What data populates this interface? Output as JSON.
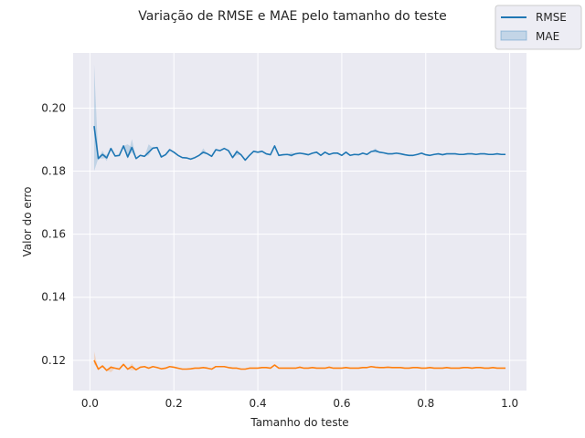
{
  "chart_data": {
    "type": "line",
    "title": "Variação de RMSE e MAE pelo tamanho do teste",
    "xlabel": "Tamanho do teste",
    "ylabel": "Valor do erro",
    "xlim": [
      -0.04,
      1.04
    ],
    "ylim": [
      0.1104,
      0.2175
    ],
    "x_ticks": [
      0.0,
      0.2,
      0.4,
      0.6,
      0.8,
      1.0
    ],
    "x_tick_labels": [
      "0.0",
      "0.2",
      "0.4",
      "0.6",
      "0.8",
      "1.0"
    ],
    "y_ticks": [
      0.12,
      0.14,
      0.16,
      0.18,
      0.2
    ],
    "y_tick_labels": [
      "0.12",
      "0.14",
      "0.16",
      "0.18",
      "0.20"
    ],
    "grid": true,
    "legend_position": "top-right",
    "legend": [
      {
        "label": "RMSE",
        "kind": "line"
      },
      {
        "label": "MAE",
        "kind": "band"
      }
    ],
    "series": [
      {
        "name": "RMSE",
        "color": "#1f77b4",
        "x": [
          0.01,
          0.02,
          0.03,
          0.04,
          0.05,
          0.06,
          0.07,
          0.08,
          0.09,
          0.1,
          0.11,
          0.12,
          0.13,
          0.14,
          0.15,
          0.16,
          0.17,
          0.18,
          0.19,
          0.2,
          0.21,
          0.22,
          0.23,
          0.24,
          0.25,
          0.26,
          0.27,
          0.28,
          0.29,
          0.3,
          0.31,
          0.32,
          0.33,
          0.34,
          0.35,
          0.36,
          0.37,
          0.38,
          0.39,
          0.4,
          0.41,
          0.42,
          0.43,
          0.44,
          0.45,
          0.46,
          0.47,
          0.48,
          0.49,
          0.5,
          0.51,
          0.52,
          0.53,
          0.54,
          0.55,
          0.56,
          0.57,
          0.58,
          0.59,
          0.6,
          0.61,
          0.62,
          0.63,
          0.64,
          0.65,
          0.66,
          0.67,
          0.68,
          0.69,
          0.7,
          0.71,
          0.72,
          0.73,
          0.74,
          0.75,
          0.76,
          0.77,
          0.78,
          0.79,
          0.8,
          0.81,
          0.82,
          0.83,
          0.84,
          0.85,
          0.86,
          0.87,
          0.88,
          0.89,
          0.9,
          0.91,
          0.92,
          0.93,
          0.94,
          0.95,
          0.96,
          0.97,
          0.98,
          0.99
        ],
        "y": [
          0.1943,
          0.184,
          0.1853,
          0.1842,
          0.1872,
          0.1848,
          0.185,
          0.188,
          0.1845,
          0.1875,
          0.184,
          0.185,
          0.1847,
          0.186,
          0.1873,
          0.1875,
          0.1845,
          0.1852,
          0.1868,
          0.186,
          0.185,
          0.1843,
          0.1842,
          0.1838,
          0.1843,
          0.185,
          0.186,
          0.1855,
          0.1847,
          0.1868,
          0.1865,
          0.1872,
          0.1865,
          0.1843,
          0.1862,
          0.1852,
          0.1835,
          0.185,
          0.1863,
          0.186,
          0.1863,
          0.1855,
          0.1852,
          0.188,
          0.185,
          0.1852,
          0.1853,
          0.185,
          0.1855,
          0.1857,
          0.1855,
          0.1852,
          0.1857,
          0.186,
          0.185,
          0.186,
          0.1853,
          0.1857,
          0.1857,
          0.185,
          0.186,
          0.185,
          0.1853,
          0.1852,
          0.1857,
          0.1853,
          0.1862,
          0.1865,
          0.186,
          0.1858,
          0.1855,
          0.1855,
          0.1857,
          0.1855,
          0.1852,
          0.185,
          0.185,
          0.1853,
          0.1857,
          0.1852,
          0.185,
          0.1853,
          0.1855,
          0.1852,
          0.1855,
          0.1855,
          0.1855,
          0.1853,
          0.1853,
          0.1855,
          0.1855,
          0.1853,
          0.1855,
          0.1855,
          0.1853,
          0.1853,
          0.1855,
          0.1853,
          0.1853
        ],
        "band": [
          {
            "x": 0.01,
            "low": 0.18,
            "high": 0.214
          },
          {
            "x": 0.02,
            "low": 0.1833,
            "high": 0.1848
          },
          {
            "x": 0.03,
            "low": 0.184,
            "high": 0.1865
          },
          {
            "x": 0.04,
            "low": 0.1832,
            "high": 0.1852
          },
          {
            "x": 0.09,
            "low": 0.1838,
            "high": 0.1885
          },
          {
            "x": 0.1,
            "low": 0.186,
            "high": 0.1902
          },
          {
            "x": 0.14,
            "low": 0.185,
            "high": 0.1885
          },
          {
            "x": 0.27,
            "low": 0.1855,
            "high": 0.1872
          },
          {
            "x": 0.35,
            "low": 0.185,
            "high": 0.1868
          },
          {
            "x": 0.48,
            "low": 0.1845,
            "high": 0.186
          },
          {
            "x": 0.68,
            "low": 0.1858,
            "high": 0.1872
          }
        ]
      },
      {
        "name": "MAE",
        "color": "#ff7f0e",
        "x": [
          0.01,
          0.02,
          0.03,
          0.04,
          0.05,
          0.06,
          0.07,
          0.08,
          0.09,
          0.1,
          0.11,
          0.12,
          0.13,
          0.14,
          0.15,
          0.16,
          0.17,
          0.18,
          0.19,
          0.2,
          0.21,
          0.22,
          0.23,
          0.24,
          0.25,
          0.26,
          0.27,
          0.28,
          0.29,
          0.3,
          0.31,
          0.32,
          0.33,
          0.34,
          0.35,
          0.36,
          0.37,
          0.38,
          0.39,
          0.4,
          0.41,
          0.42,
          0.43,
          0.44,
          0.45,
          0.46,
          0.47,
          0.48,
          0.49,
          0.5,
          0.51,
          0.52,
          0.53,
          0.54,
          0.55,
          0.56,
          0.57,
          0.58,
          0.59,
          0.6,
          0.61,
          0.62,
          0.63,
          0.64,
          0.65,
          0.66,
          0.67,
          0.68,
          0.69,
          0.7,
          0.71,
          0.72,
          0.73,
          0.74,
          0.75,
          0.76,
          0.77,
          0.78,
          0.79,
          0.8,
          0.81,
          0.82,
          0.83,
          0.84,
          0.85,
          0.86,
          0.87,
          0.88,
          0.89,
          0.9,
          0.91,
          0.92,
          0.93,
          0.94,
          0.95,
          0.96,
          0.97,
          0.98,
          0.99
        ],
        "y": [
          0.12,
          0.1172,
          0.1182,
          0.1168,
          0.1178,
          0.1175,
          0.1172,
          0.1187,
          0.1172,
          0.118,
          0.117,
          0.1178,
          0.118,
          0.1175,
          0.118,
          0.1177,
          0.1173,
          0.1175,
          0.118,
          0.1178,
          0.1175,
          0.1172,
          0.1172,
          0.1173,
          0.1175,
          0.1175,
          0.1177,
          0.1175,
          0.1172,
          0.118,
          0.118,
          0.118,
          0.1177,
          0.1175,
          0.1175,
          0.1172,
          0.1172,
          0.1175,
          0.1175,
          0.1175,
          0.1177,
          0.1177,
          0.1175,
          0.1185,
          0.1175,
          0.1175,
          0.1175,
          0.1175,
          0.1175,
          0.1178,
          0.1175,
          0.1175,
          0.1177,
          0.1175,
          0.1175,
          0.1175,
          0.1178,
          0.1175,
          0.1175,
          0.1175,
          0.1177,
          0.1175,
          0.1175,
          0.1175,
          0.1177,
          0.1177,
          0.118,
          0.1178,
          0.1177,
          0.1177,
          0.1178,
          0.1177,
          0.1177,
          0.1177,
          0.1175,
          0.1175,
          0.1177,
          0.1177,
          0.1175,
          0.1175,
          0.1177,
          0.1175,
          0.1175,
          0.1175,
          0.1177,
          0.1175,
          0.1175,
          0.1175,
          0.1177,
          0.1177,
          0.1175,
          0.1177,
          0.1177,
          0.1175,
          0.1175,
          0.1177,
          0.1175,
          0.1175,
          0.1175
        ],
        "band": [
          {
            "x": 0.01,
            "low": 0.1188,
            "high": 0.1228
          },
          {
            "x": 0.05,
            "low": 0.1162,
            "high": 0.1182
          },
          {
            "x": 0.1,
            "low": 0.1168,
            "high": 0.119
          }
        ]
      }
    ]
  }
}
